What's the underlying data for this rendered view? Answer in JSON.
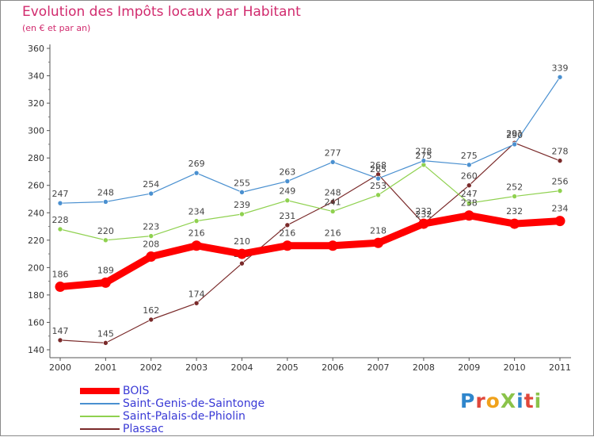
{
  "chart_data": {
    "type": "line",
    "title": "Evolution des Impôts locaux par Habitant",
    "subtitle": "(en € et par an)",
    "x": [
      "2000",
      "2001",
      "2002",
      "2003",
      "2004",
      "2005",
      "2006",
      "2007",
      "2008",
      "2009",
      "2010",
      "2011"
    ],
    "ylim": [
      140,
      360
    ],
    "yticks": [
      140,
      160,
      180,
      200,
      220,
      240,
      260,
      280,
      300,
      320,
      340,
      360
    ],
    "grid": false,
    "legend_position": "bottom-left",
    "series": [
      {
        "name": "BOIS",
        "color": "#ff0000",
        "values": [
          186,
          189,
          208,
          216,
          210,
          216,
          216,
          218,
          232,
          238,
          232,
          234
        ]
      },
      {
        "name": "Saint-Genis-de-Saintonge",
        "color": "#4a90d0",
        "values": [
          247,
          248,
          254,
          269,
          255,
          263,
          277,
          265,
          278,
          275,
          290,
          339
        ]
      },
      {
        "name": "Saint-Palais-de-Phiolin",
        "color": "#8fd14f",
        "values": [
          228,
          220,
          223,
          234,
          239,
          249,
          241,
          253,
          275,
          247,
          252,
          256
        ]
      },
      {
        "name": "Plassac",
        "color": "#7a2a2a",
        "values": [
          147,
          145,
          162,
          174,
          203,
          231,
          248,
          268,
          232,
          260,
          291,
          278
        ]
      }
    ]
  },
  "logo": {
    "text": "ProXiti",
    "colors": [
      "#2f86cc",
      "#e0473b",
      "#f0a21c",
      "#8bc34a",
      "#2f86cc",
      "#e0473b",
      "#8bc34a"
    ]
  }
}
